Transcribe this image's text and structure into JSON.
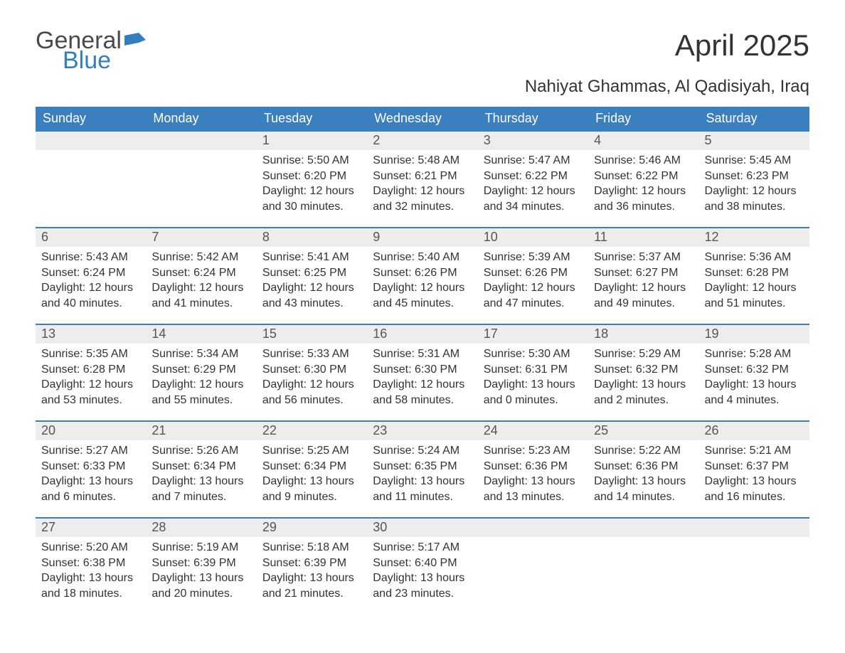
{
  "logo": {
    "word1": "General",
    "word2": "Blue",
    "color_general": "#4a4a4a",
    "color_blue": "#2f7fc1",
    "flag_color": "#2f7fc1"
  },
  "title": "April 2025",
  "subtitle": "Nahiyat Ghammas, Al Qadisiyah, Iraq",
  "colors": {
    "header_bg": "#3a7fc0",
    "header_text": "#ffffff",
    "daynum_bg": "#ededed",
    "daynum_text": "#555555",
    "row_border": "#3a7fc0",
    "body_text": "#333333",
    "page_bg": "#ffffff"
  },
  "fontsizes": {
    "title": 42,
    "subtitle": 24,
    "header": 18,
    "daynum": 18,
    "cell": 16
  },
  "weekdays": [
    "Sunday",
    "Monday",
    "Tuesday",
    "Wednesday",
    "Thursday",
    "Friday",
    "Saturday"
  ],
  "weeks": [
    [
      null,
      null,
      {
        "n": "1",
        "sr": "Sunrise: 5:50 AM",
        "ss": "Sunset: 6:20 PM",
        "dl": "Daylight: 12 hours and 30 minutes."
      },
      {
        "n": "2",
        "sr": "Sunrise: 5:48 AM",
        "ss": "Sunset: 6:21 PM",
        "dl": "Daylight: 12 hours and 32 minutes."
      },
      {
        "n": "3",
        "sr": "Sunrise: 5:47 AM",
        "ss": "Sunset: 6:22 PM",
        "dl": "Daylight: 12 hours and 34 minutes."
      },
      {
        "n": "4",
        "sr": "Sunrise: 5:46 AM",
        "ss": "Sunset: 6:22 PM",
        "dl": "Daylight: 12 hours and 36 minutes."
      },
      {
        "n": "5",
        "sr": "Sunrise: 5:45 AM",
        "ss": "Sunset: 6:23 PM",
        "dl": "Daylight: 12 hours and 38 minutes."
      }
    ],
    [
      {
        "n": "6",
        "sr": "Sunrise: 5:43 AM",
        "ss": "Sunset: 6:24 PM",
        "dl": "Daylight: 12 hours and 40 minutes."
      },
      {
        "n": "7",
        "sr": "Sunrise: 5:42 AM",
        "ss": "Sunset: 6:24 PM",
        "dl": "Daylight: 12 hours and 41 minutes."
      },
      {
        "n": "8",
        "sr": "Sunrise: 5:41 AM",
        "ss": "Sunset: 6:25 PM",
        "dl": "Daylight: 12 hours and 43 minutes."
      },
      {
        "n": "9",
        "sr": "Sunrise: 5:40 AM",
        "ss": "Sunset: 6:26 PM",
        "dl": "Daylight: 12 hours and 45 minutes."
      },
      {
        "n": "10",
        "sr": "Sunrise: 5:39 AM",
        "ss": "Sunset: 6:26 PM",
        "dl": "Daylight: 12 hours and 47 minutes."
      },
      {
        "n": "11",
        "sr": "Sunrise: 5:37 AM",
        "ss": "Sunset: 6:27 PM",
        "dl": "Daylight: 12 hours and 49 minutes."
      },
      {
        "n": "12",
        "sr": "Sunrise: 5:36 AM",
        "ss": "Sunset: 6:28 PM",
        "dl": "Daylight: 12 hours and 51 minutes."
      }
    ],
    [
      {
        "n": "13",
        "sr": "Sunrise: 5:35 AM",
        "ss": "Sunset: 6:28 PM",
        "dl": "Daylight: 12 hours and 53 minutes."
      },
      {
        "n": "14",
        "sr": "Sunrise: 5:34 AM",
        "ss": "Sunset: 6:29 PM",
        "dl": "Daylight: 12 hours and 55 minutes."
      },
      {
        "n": "15",
        "sr": "Sunrise: 5:33 AM",
        "ss": "Sunset: 6:30 PM",
        "dl": "Daylight: 12 hours and 56 minutes."
      },
      {
        "n": "16",
        "sr": "Sunrise: 5:31 AM",
        "ss": "Sunset: 6:30 PM",
        "dl": "Daylight: 12 hours and 58 minutes."
      },
      {
        "n": "17",
        "sr": "Sunrise: 5:30 AM",
        "ss": "Sunset: 6:31 PM",
        "dl": "Daylight: 13 hours and 0 minutes."
      },
      {
        "n": "18",
        "sr": "Sunrise: 5:29 AM",
        "ss": "Sunset: 6:32 PM",
        "dl": "Daylight: 13 hours and 2 minutes."
      },
      {
        "n": "19",
        "sr": "Sunrise: 5:28 AM",
        "ss": "Sunset: 6:32 PM",
        "dl": "Daylight: 13 hours and 4 minutes."
      }
    ],
    [
      {
        "n": "20",
        "sr": "Sunrise: 5:27 AM",
        "ss": "Sunset: 6:33 PM",
        "dl": "Daylight: 13 hours and 6 minutes."
      },
      {
        "n": "21",
        "sr": "Sunrise: 5:26 AM",
        "ss": "Sunset: 6:34 PM",
        "dl": "Daylight: 13 hours and 7 minutes."
      },
      {
        "n": "22",
        "sr": "Sunrise: 5:25 AM",
        "ss": "Sunset: 6:34 PM",
        "dl": "Daylight: 13 hours and 9 minutes."
      },
      {
        "n": "23",
        "sr": "Sunrise: 5:24 AM",
        "ss": "Sunset: 6:35 PM",
        "dl": "Daylight: 13 hours and 11 minutes."
      },
      {
        "n": "24",
        "sr": "Sunrise: 5:23 AM",
        "ss": "Sunset: 6:36 PM",
        "dl": "Daylight: 13 hours and 13 minutes."
      },
      {
        "n": "25",
        "sr": "Sunrise: 5:22 AM",
        "ss": "Sunset: 6:36 PM",
        "dl": "Daylight: 13 hours and 14 minutes."
      },
      {
        "n": "26",
        "sr": "Sunrise: 5:21 AM",
        "ss": "Sunset: 6:37 PM",
        "dl": "Daylight: 13 hours and 16 minutes."
      }
    ],
    [
      {
        "n": "27",
        "sr": "Sunrise: 5:20 AM",
        "ss": "Sunset: 6:38 PM",
        "dl": "Daylight: 13 hours and 18 minutes."
      },
      {
        "n": "28",
        "sr": "Sunrise: 5:19 AM",
        "ss": "Sunset: 6:39 PM",
        "dl": "Daylight: 13 hours and 20 minutes."
      },
      {
        "n": "29",
        "sr": "Sunrise: 5:18 AM",
        "ss": "Sunset: 6:39 PM",
        "dl": "Daylight: 13 hours and 21 minutes."
      },
      {
        "n": "30",
        "sr": "Sunrise: 5:17 AM",
        "ss": "Sunset: 6:40 PM",
        "dl": "Daylight: 13 hours and 23 minutes."
      },
      null,
      null,
      null
    ]
  ]
}
